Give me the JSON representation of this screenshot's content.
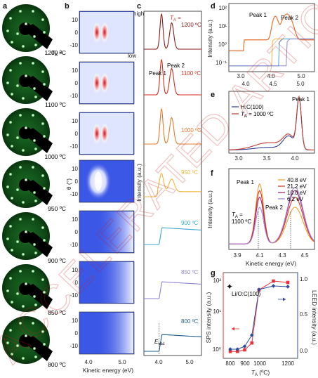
{
  "watermark": "ACCELERATED ARTICLE PREVIEW",
  "panels": {
    "a": {
      "label": "a",
      "ta_prefix": "T",
      "ta_sub": "A",
      "ta_eq": " =",
      "temps": [
        "1200 ºC",
        "1100 ºC",
        "1000 ºC",
        "950 ºC",
        "900 ºC",
        "850 ºC",
        "800 ºC"
      ]
    },
    "b": {
      "label": "b",
      "ylabel": "θ (°)",
      "xlabel": "Kinetic energy (eV)",
      "yticks": [
        "10",
        "0",
        "-10"
      ],
      "xticks": [
        "4.0",
        "5.0"
      ],
      "colorbar_high": "high",
      "colorbar_low": "low"
    },
    "c": {
      "label": "c",
      "ylabel": "Intensity (a.u.)",
      "xticks": [
        "4.0",
        "5.0"
      ],
      "ta_prefix": "T",
      "ta_sub": "A",
      "ta_eq": " =",
      "peak1": "Peak 1",
      "peak2": "Peak 2",
      "temps": [
        "1200 ºC",
        "1100 ºC",
        "1000 ºC",
        "950 ºC",
        "900 ºC",
        "850 ºC",
        "800 ºC"
      ],
      "evac_main": "E",
      "evac_sub": "vac"
    },
    "d": {
      "label": "d",
      "ylabel": "Intensity (a.u.)",
      "yticks": [
        "10²",
        "10¹",
        "10⁰",
        "10⁻¹"
      ],
      "xticks_top": [
        "3.0",
        "4.0",
        "5.0"
      ],
      "xticks_bottom": [
        "4.0",
        "4.5",
        "5.0"
      ],
      "peak1": "Peak 1",
      "peak2": "Peak 2"
    },
    "e": {
      "label": "e",
      "xticks": [
        "3.0",
        "3.5",
        "4.0"
      ],
      "legend_1": "H:C(100)",
      "legend_2_prefix": "T",
      "legend_2_sub": "A",
      "legend_2_suffix": " = 1000 ºC",
      "peak1": "Peak 1"
    },
    "f": {
      "label": "f",
      "ylabel": "Intensity (a.u.)",
      "xlabel": "Kinetic energy (eV)",
      "xticks": [
        "3.9",
        "4.1",
        "4.3",
        "4.5"
      ],
      "legend": [
        "40.8 eV",
        "21.2 eV",
        "10.0 eV",
        "6.2 eV"
      ],
      "peak1": "Peak 1",
      "peak2": "Peak 2",
      "ta_prefix": "T",
      "ta_sub": "A",
      "ta_eq": " =",
      "ta_value": "1100 ºC"
    },
    "g": {
      "label": "g",
      "ylabel_left": "SPS intensity (a.u.)",
      "ylabel_right": "LEED intensity (a.u.)",
      "xlabel_main": "T",
      "xlabel_sub": "A",
      "xlabel_unit": " (ºC)",
      "xticks": [
        "800",
        "900",
        "1000",
        "1200"
      ],
      "yticks_left": [
        "10²",
        "10¹",
        "10⁰"
      ],
      "yticks_right": [
        "1.0",
        "0.5",
        "0.0"
      ],
      "reference": "Li/O:C(100)"
    }
  },
  "colors": {
    "c_curves": [
      "#8b1a1a",
      "#d62c1a",
      "#e8782a",
      "#f2b63c",
      "#3aaad8",
      "#8c86d6",
      "#1e5a8a"
    ],
    "f_curves": [
      "#f0a030",
      "#e03a2a",
      "#9a2a7a",
      "#a98ad8"
    ],
    "sps": "#e8333a",
    "leed": "#2e4b9b",
    "blue_bg": "#3b57e6"
  },
  "chart_data": [
    {
      "panel": "c",
      "type": "line",
      "x_unit": "Kinetic energy (eV)",
      "series": [
        {
          "name": "1200 ºC",
          "x": [
            3.6,
            4.1,
            4.45,
            4.8,
            5.3
          ],
          "y": [
            0.05,
            1.0,
            0.9,
            0.08,
            0.02
          ]
        },
        {
          "name": "1100 ºC",
          "x": [
            3.6,
            4.1,
            4.45,
            4.8,
            5.3
          ],
          "y": [
            0.05,
            0.95,
            0.85,
            0.08,
            0.02
          ]
        },
        {
          "name": "1000 ºC",
          "x": [
            3.6,
            4.1,
            4.45,
            4.8,
            5.3
          ],
          "y": [
            0.05,
            0.9,
            0.75,
            0.08,
            0.02
          ]
        },
        {
          "name": "950 ºC",
          "x": [
            3.6,
            4.1,
            4.45,
            4.8,
            5.3
          ],
          "y": [
            0.05,
            0.7,
            0.5,
            0.25,
            0.15
          ]
        },
        {
          "name": "900 ºC",
          "x": [
            3.6,
            4.05,
            4.3,
            4.8,
            5.3
          ],
          "y": [
            0.0,
            0.05,
            0.6,
            0.55,
            0.5
          ]
        },
        {
          "name": "850 ºC",
          "x": [
            3.6,
            4.05,
            4.3,
            4.8,
            5.3
          ],
          "y": [
            0.0,
            0.05,
            0.55,
            0.5,
            0.45
          ]
        },
        {
          "name": "800 ºC",
          "x": [
            3.6,
            4.05,
            4.3,
            4.8,
            5.3
          ],
          "y": [
            0.0,
            0.05,
            0.5,
            0.45,
            0.4
          ]
        }
      ]
    },
    {
      "panel": "d",
      "type": "line",
      "yscale": "log",
      "series": [
        {
          "name": "Peak 1",
          "x": [
            4.1
          ],
          "y": [
            30
          ]
        },
        {
          "name": "Peak 2",
          "x": [
            4.45
          ],
          "y": [
            40
          ]
        }
      ]
    },
    {
      "panel": "e",
      "type": "line",
      "series": [
        {
          "name": "H:C(100)",
          "x": [
            3.0,
            3.5,
            4.0,
            4.12,
            4.3
          ],
          "y": [
            0.02,
            0.05,
            0.2,
            1.0,
            0.05
          ]
        },
        {
          "name": "TA = 1000 ºC",
          "x": [
            3.0,
            3.5,
            4.0,
            4.12,
            4.3
          ],
          "y": [
            0.03,
            0.12,
            0.25,
            0.95,
            0.05
          ]
        }
      ]
    },
    {
      "panel": "f",
      "type": "line",
      "series": [
        {
          "name": "40.8 eV",
          "x": [
            3.9,
            4.1,
            4.3,
            4.45,
            4.6
          ],
          "y": [
            0.1,
            0.9,
            0.35,
            0.55,
            0.1
          ]
        },
        {
          "name": "21.2 eV",
          "x": [
            3.9,
            4.1,
            4.3,
            4.45,
            4.6
          ],
          "y": [
            0.1,
            0.8,
            0.4,
            0.7,
            0.1
          ]
        },
        {
          "name": "10.0 eV",
          "x": [
            3.9,
            4.1,
            4.3,
            4.45,
            4.6
          ],
          "y": [
            0.1,
            0.7,
            0.45,
            0.8,
            0.1
          ]
        },
        {
          "name": "6.2 eV",
          "x": [
            3.9,
            4.1,
            4.3,
            4.45,
            4.6
          ],
          "y": [
            0.1,
            0.55,
            0.45,
            0.85,
            0.1
          ]
        }
      ]
    },
    {
      "panel": "g",
      "type": "line",
      "x": [
        800,
        850,
        900,
        950,
        1000,
        1100,
        1200
      ],
      "series": [
        {
          "name": "SPS intensity",
          "values": [
            0.9,
            0.9,
            1.0,
            1.6,
            60,
            110,
            100
          ]
        },
        {
          "name": "LEED intensity",
          "values": [
            0.03,
            0.03,
            0.07,
            0.23,
            0.88,
            0.93,
            0.92
          ]
        }
      ],
      "ylim_left": [
        0.7,
        150
      ],
      "ylim_right": [
        -0.05,
        1.1
      ],
      "yscale_left": "log"
    }
  ]
}
